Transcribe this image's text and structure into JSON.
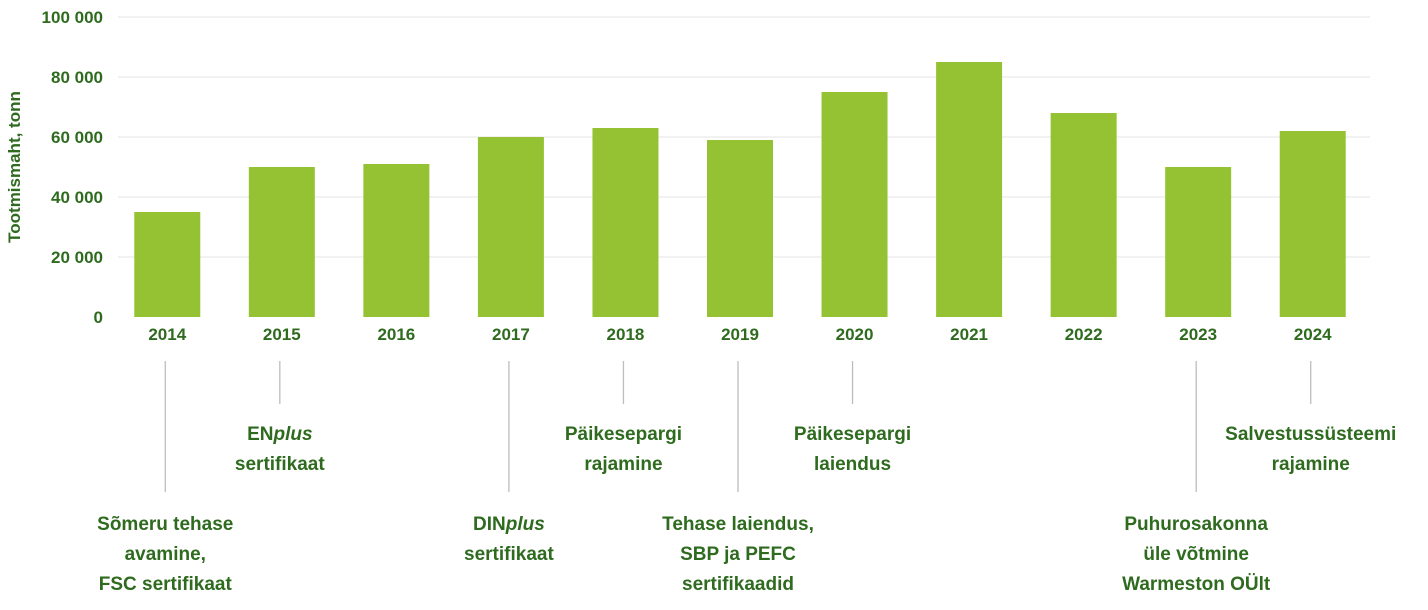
{
  "chart_data": {
    "type": "bar",
    "ylabel": "Tootmismaht, tonn",
    "xlabel": "",
    "title": "",
    "ylim": [
      0,
      100000
    ],
    "yticks": [
      {
        "value": 0,
        "label": "0"
      },
      {
        "value": 20000,
        "label": "20 000"
      },
      {
        "value": 40000,
        "label": "40 000"
      },
      {
        "value": 60000,
        "label": "60 000"
      },
      {
        "value": 80000,
        "label": "80 000"
      },
      {
        "value": 100000,
        "label": "100 000"
      }
    ],
    "categories": [
      "2014",
      "2015",
      "2016",
      "2017",
      "2018",
      "2019",
      "2020",
      "2021",
      "2022",
      "2023",
      "2024"
    ],
    "values": [
      35000,
      50000,
      51000,
      60000,
      63000,
      59000,
      75000,
      85000,
      68000,
      50000,
      62000
    ],
    "grid": true,
    "bar_color": "#95c232",
    "annotations": [
      {
        "year": "2014",
        "level": "low",
        "lines": [
          [
            {
              "t": "Sõmeru tehase"
            }
          ],
          [
            {
              "t": "avamine,"
            }
          ],
          [
            {
              "t": "FSC sertifikaat"
            }
          ]
        ]
      },
      {
        "year": "2015",
        "level": "high",
        "lines": [
          [
            {
              "t": "EN"
            },
            {
              "t": "plus",
              "i": true
            }
          ],
          [
            {
              "t": "sertifikaat"
            }
          ]
        ]
      },
      {
        "year": "2017",
        "level": "low",
        "lines": [
          [
            {
              "t": "DIN"
            },
            {
              "t": "plus",
              "i": true
            }
          ],
          [
            {
              "t": "sertifikaat"
            }
          ]
        ]
      },
      {
        "year": "2018",
        "level": "high",
        "lines": [
          [
            {
              "t": "Päikesepargi"
            }
          ],
          [
            {
              "t": "rajamine"
            }
          ]
        ]
      },
      {
        "year": "2019",
        "level": "low",
        "lines": [
          [
            {
              "t": "Tehase laiendus,"
            }
          ],
          [
            {
              "t": "SBP ja PEFC"
            }
          ],
          [
            {
              "t": "sertifikaadid"
            }
          ]
        ]
      },
      {
        "year": "2020",
        "level": "high",
        "lines": [
          [
            {
              "t": "Päikesepargi"
            }
          ],
          [
            {
              "t": "laiendus"
            }
          ]
        ]
      },
      {
        "year": "2023",
        "level": "low",
        "lines": [
          [
            {
              "t": "Puhurosakonna"
            }
          ],
          [
            {
              "t": "üle võtmine"
            }
          ],
          [
            {
              "t": "Warmeston OÜlt"
            }
          ]
        ]
      },
      {
        "year": "2024",
        "level": "high",
        "lines": [
          [
            {
              "t": "Salvestussüsteemi"
            }
          ],
          [
            {
              "t": "rajamine"
            }
          ]
        ]
      }
    ]
  }
}
